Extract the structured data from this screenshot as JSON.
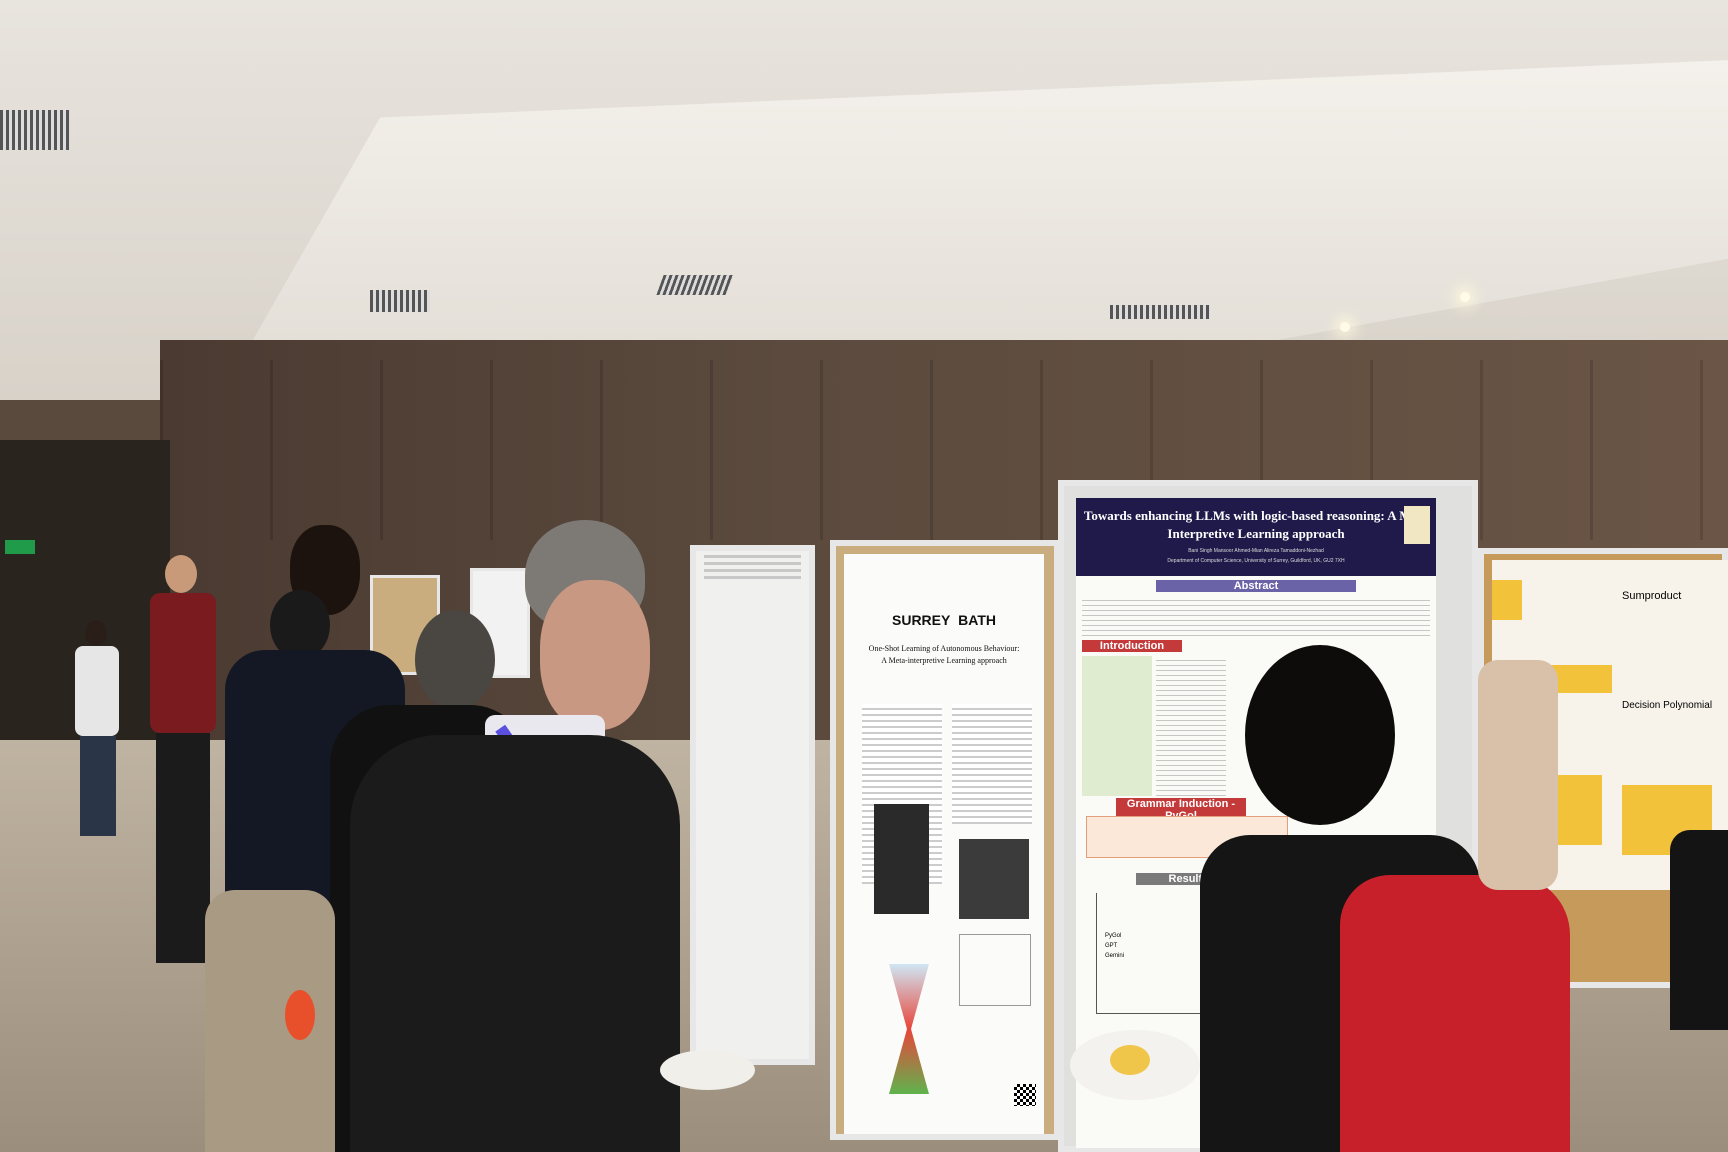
{
  "scene": {
    "description_colors": {
      "wall": "#5b4a3d",
      "floor": "#b0a391",
      "ceiling": "#e6e2dc",
      "poster_header": "#1f1a4a",
      "lanyard": "#5b4fe0",
      "backpack": "#c8202a"
    }
  },
  "posters": {
    "main": {
      "title_line1": "Towards enhancing LLMs with logic-based reasoning: A Meta",
      "title_line2": "Interpretive Learning approach",
      "authors": "Bani Singh    Mansoor Ahmed-Mian    Alireza Tamaddoni-Nezhad",
      "affiliation": "Department of Computer Science, University of Surrey, Guildford, UK, GU2 7XH",
      "section_abstract": "Abstract",
      "section_intro": "Introduction",
      "section_grammar": "Grammar Induction - PyGol",
      "section_results": "Results and Analy",
      "legend": [
        "PyGol",
        "GPT",
        "Gemini"
      ]
    },
    "middle": {
      "logos": [
        "SURREY",
        "BATH"
      ],
      "title": "One-Shot Learning of Autonomous Behaviour:",
      "subtitle": "A Meta-interpretive Learning approach"
    },
    "right": {
      "heading1": "Sumproduct",
      "heading2": "Decision Polynomial"
    }
  }
}
